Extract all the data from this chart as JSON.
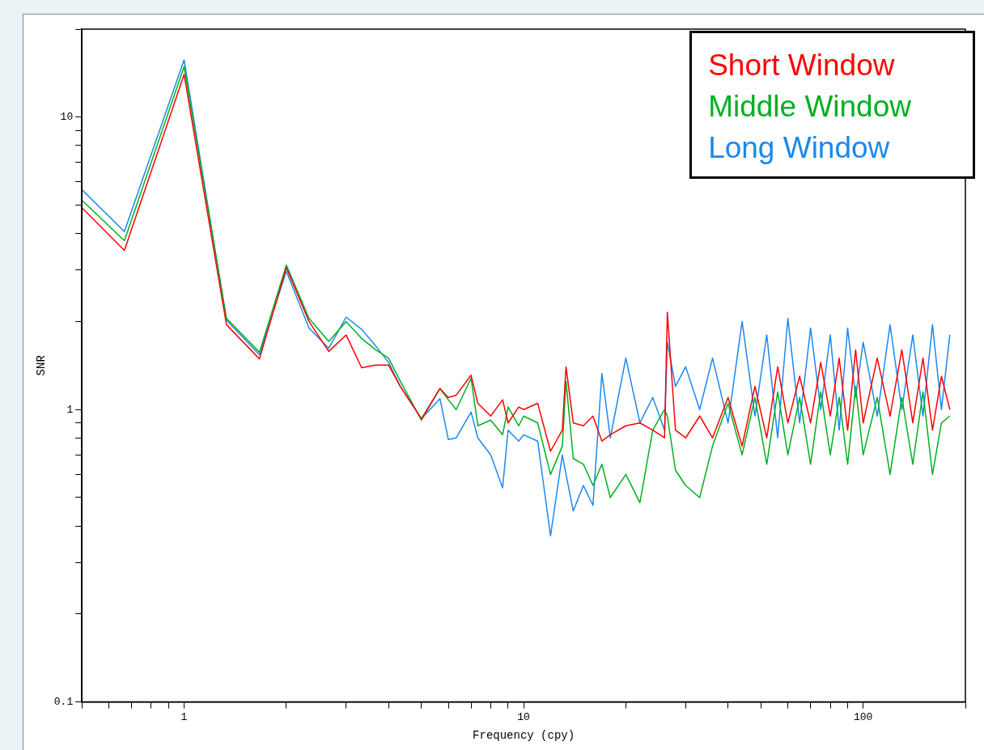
{
  "chart_data": {
    "type": "line",
    "xlabel": "Frequency (cpy)",
    "ylabel": "SNR",
    "log": "xy",
    "grid": false,
    "legend": "top right",
    "marker": "none",
    "line_style": "solid",
    "xlim": [
      0.5,
      200
    ],
    "xticks": [
      {
        "value": 0.5,
        "label": null
      },
      {
        "value": 0.6,
        "label": null
      },
      {
        "value": 0.7,
        "label": null
      },
      {
        "value": 0.8,
        "label": null
      },
      {
        "value": 0.9,
        "label": null
      },
      1,
      {
        "value": 2,
        "label": null
      },
      {
        "value": 3,
        "label": null
      },
      {
        "value": 4,
        "label": null
      },
      {
        "value": 5,
        "label": null
      },
      {
        "value": 6,
        "label": null
      },
      {
        "value": 7,
        "label": null
      },
      {
        "value": 8,
        "label": null
      },
      {
        "value": 9,
        "label": null
      },
      10,
      {
        "value": 20,
        "label": null
      },
      {
        "value": 30,
        "label": null
      },
      {
        "value": 40,
        "label": null
      },
      {
        "value": 50,
        "label": null
      },
      {
        "value": 60,
        "label": null
      },
      {
        "value": 70,
        "label": null
      },
      {
        "value": 80,
        "label": null
      },
      {
        "value": 90,
        "label": null
      },
      100,
      {
        "value": 200,
        "label": null
      }
    ],
    "ylim": [
      0.1,
      20
    ],
    "yticks": [
      0.1,
      {
        "value": 0.2,
        "label": null
      },
      {
        "value": 0.3,
        "label": null
      },
      {
        "value": 0.4,
        "label": null
      },
      {
        "value": 0.5,
        "label": null
      },
      {
        "value": 0.6,
        "label": null
      },
      {
        "value": 0.7,
        "label": null
      },
      {
        "value": 0.8,
        "label": null
      },
      {
        "value": 0.9,
        "label": null
      },
      1,
      {
        "value": 2,
        "label": null
      },
      {
        "value": 3,
        "label": null
      },
      {
        "value": 4,
        "label": null
      },
      {
        "value": 5,
        "label": null
      },
      {
        "value": 6,
        "label": null
      },
      {
        "value": 7,
        "label": null
      },
      {
        "value": 8,
        "label": null
      },
      {
        "value": 9,
        "label": null
      },
      10,
      {
        "value": 20,
        "label": null
      }
    ],
    "x": [
      0.5,
      0.667,
      1,
      1.333,
      1.667,
      2,
      2.333,
      2.667,
      3,
      3.333,
      3.667,
      4,
      4.333,
      5,
      5.67,
      6,
      6.33,
      7,
      7.33,
      8,
      8.67,
      9,
      9.67,
      10,
      11,
      12,
      13,
      13.33,
      14,
      15,
      16,
      17,
      18,
      20,
      22,
      24,
      26,
      26.5,
      28,
      30,
      33,
      36,
      40,
      44,
      48,
      52,
      56,
      60,
      65,
      70,
      75,
      80,
      85,
      90,
      95,
      100,
      110,
      120,
      130,
      140,
      150,
      160,
      170,
      180
    ],
    "series": [
      {
        "name": "Short Window",
        "color": "#ff0000",
        "values": [
          4.9,
          3.5,
          14.0,
          1.95,
          1.49,
          3.06,
          2.0,
          1.58,
          1.8,
          1.39,
          1.42,
          1.42,
          1.2,
          0.93,
          1.18,
          1.1,
          1.12,
          1.31,
          1.05,
          0.95,
          1.08,
          0.9,
          1.02,
          1.0,
          1.05,
          0.72,
          0.85,
          1.4,
          0.9,
          0.88,
          0.95,
          0.78,
          0.82,
          0.88,
          0.9,
          0.85,
          0.8,
          2.15,
          0.85,
          0.8,
          0.95,
          0.8,
          1.1,
          0.75,
          1.2,
          0.8,
          1.4,
          0.9,
          1.3,
          0.9,
          1.45,
          0.95,
          1.5,
          0.85,
          1.6,
          0.9,
          1.5,
          0.95,
          1.6,
          0.9,
          1.5,
          0.85,
          1.3,
          1.0
        ]
      },
      {
        "name": "Middle Window",
        "color": "#00b020",
        "values": [
          5.2,
          3.78,
          14.9,
          2.05,
          1.57,
          3.12,
          2.05,
          1.71,
          2.0,
          1.75,
          1.6,
          1.5,
          1.25,
          0.92,
          1.18,
          1.08,
          1.0,
          1.28,
          0.88,
          0.92,
          0.82,
          1.02,
          0.88,
          0.95,
          0.9,
          0.6,
          0.75,
          1.25,
          0.68,
          0.65,
          0.55,
          0.65,
          0.5,
          0.6,
          0.48,
          0.85,
          1.0,
          0.95,
          0.62,
          0.55,
          0.5,
          0.75,
          1.05,
          0.7,
          1.1,
          0.65,
          1.15,
          0.7,
          1.1,
          0.65,
          1.15,
          0.7,
          1.1,
          0.65,
          1.2,
          0.7,
          1.1,
          0.6,
          1.1,
          0.65,
          1.15,
          0.6,
          0.9,
          0.95
        ]
      },
      {
        "name": "Long Window",
        "color": "#1a88f0",
        "values": [
          5.65,
          4.06,
          15.7,
          2.02,
          1.54,
          2.97,
          1.9,
          1.62,
          2.07,
          1.88,
          1.65,
          1.45,
          1.2,
          0.93,
          1.09,
          0.79,
          0.8,
          0.98,
          0.8,
          0.7,
          0.54,
          0.85,
          0.78,
          0.82,
          0.78,
          0.37,
          0.7,
          0.6,
          0.45,
          0.55,
          0.47,
          1.33,
          0.8,
          1.5,
          0.9,
          1.1,
          0.85,
          1.7,
          1.2,
          1.4,
          1.0,
          1.5,
          0.9,
          2.0,
          0.95,
          1.8,
          0.8,
          2.05,
          0.9,
          1.9,
          1.0,
          1.8,
          0.85,
          1.9,
          1.1,
          1.7,
          0.95,
          1.95,
          1.0,
          1.8,
          0.95,
          1.95,
          1.0,
          1.8
        ]
      }
    ]
  }
}
